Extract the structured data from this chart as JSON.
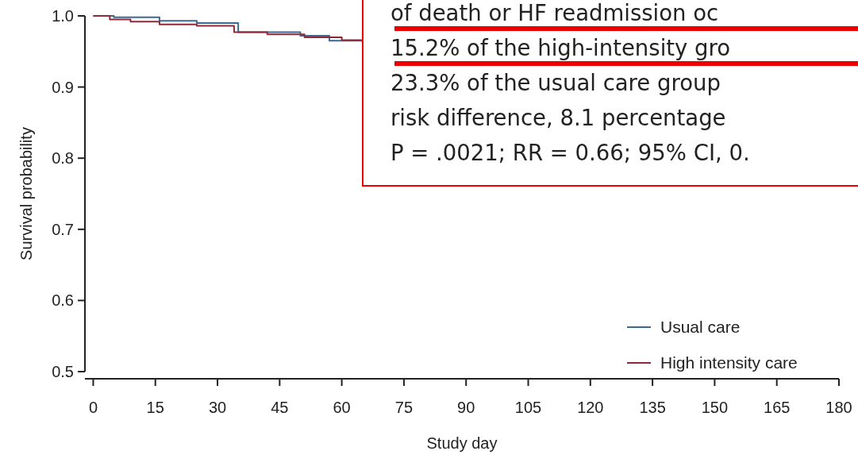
{
  "chart_data": {
    "type": "step",
    "xlabel": "Study day",
    "ylabel": "Survival probability",
    "xlim": [
      -2,
      180
    ],
    "xticks": [
      0,
      15,
      30,
      45,
      60,
      75,
      90,
      105,
      120,
      135,
      150,
      165,
      180
    ],
    "ylim": [
      0.5,
      1.0
    ],
    "yticks": [
      {
        "value": 0.5,
        "label": "0.5"
      },
      {
        "value": 0.6,
        "label": "0.6"
      },
      {
        "value": 0.7,
        "label": "0.7"
      },
      {
        "value": 0.8,
        "label": "0.8"
      },
      {
        "value": 0.9,
        "label": "0.9"
      },
      {
        "value": 1.0,
        "label": "1.0"
      }
    ],
    "series": [
      {
        "name": "Usual care",
        "color": "#3d6a93",
        "x": [
          0,
          5,
          16,
          25,
          35,
          50,
          57,
          65
        ],
        "values": [
          1.0,
          0.998,
          0.993,
          0.99,
          0.977,
          0.972,
          0.965,
          0.962
        ]
      },
      {
        "name": "High intensity care",
        "color": "#8e2a3a",
        "x": [
          0,
          4,
          9,
          16,
          25,
          34,
          42,
          51,
          60,
          65
        ],
        "values": [
          1.0,
          0.995,
          0.992,
          0.988,
          0.986,
          0.977,
          0.974,
          0.97,
          0.966,
          0.966
        ]
      }
    ],
    "legend": "bottom right",
    "grid": false,
    "annotations": [
      "of death or HF readmission oc",
      "15.2% of the high-intensity gro",
      "23.3% of the usual care group",
      "risk difference, 8.1 percentage",
      "P = .0021; RR = 0.66; 95% CI, 0."
    ]
  }
}
